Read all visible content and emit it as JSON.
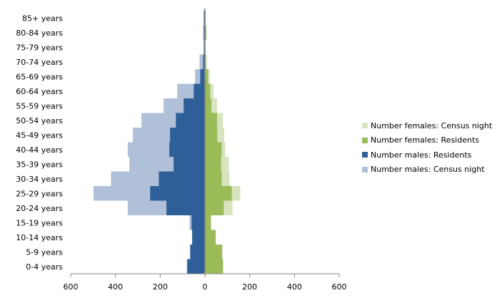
{
  "chart_data": {
    "type": "bar",
    "orientation": "horizontal",
    "subtype": "population-pyramid",
    "categories": [
      "85+ years",
      "80-84 years",
      "75-79 years",
      "70-74 years",
      "65-69 years",
      "60-64 years",
      "55-59 years",
      "50-54 years",
      "45-49 years",
      "40-44 years",
      "35-39 years",
      "30-34 years",
      "25-29 years",
      "20-24 years",
      "15-19 years",
      "10-14 years",
      "5-9 years",
      "0-4 years"
    ],
    "series": [
      {
        "name": "Number females: Census night",
        "side": "right",
        "color": "#d7e4bd",
        "values": [
          3,
          6,
          2,
          10,
          22,
          38,
          54,
          80,
          86,
          91,
          107,
          110,
          158,
          123,
          29,
          48,
          77,
          81
        ]
      },
      {
        "name": "Number females: Residents",
        "side": "right",
        "color": "#9bbb59",
        "values": [
          3,
          6,
          2,
          3,
          14,
          23,
          29,
          54,
          55,
          75,
          72,
          75,
          120,
          84,
          26,
          48,
          77,
          81
        ]
      },
      {
        "name": "Number males: Residents",
        "side": "left",
        "color": "#2e5f99",
        "values": [
          5,
          5,
          5,
          8,
          21,
          50,
          95,
          130,
          156,
          159,
          140,
          206,
          245,
          172,
          60,
          57,
          66,
          79
        ]
      },
      {
        "name": "Number males: Census night",
        "side": "left",
        "color": "#b0c0d9",
        "values": [
          5,
          8,
          5,
          24,
          44,
          124,
          185,
          284,
          322,
          345,
          338,
          420,
          498,
          345,
          69,
          57,
          66,
          81
        ]
      }
    ],
    "xlim": [
      -600,
      600
    ],
    "xticks": [
      -600,
      -400,
      -200,
      0,
      200,
      400,
      600
    ],
    "xtick_labels": [
      "600",
      "400",
      "200",
      "0",
      "200",
      "400",
      "600"
    ],
    "grid": false,
    "legend_position": "right",
    "title": "",
    "xlabel": "",
    "ylabel": ""
  }
}
